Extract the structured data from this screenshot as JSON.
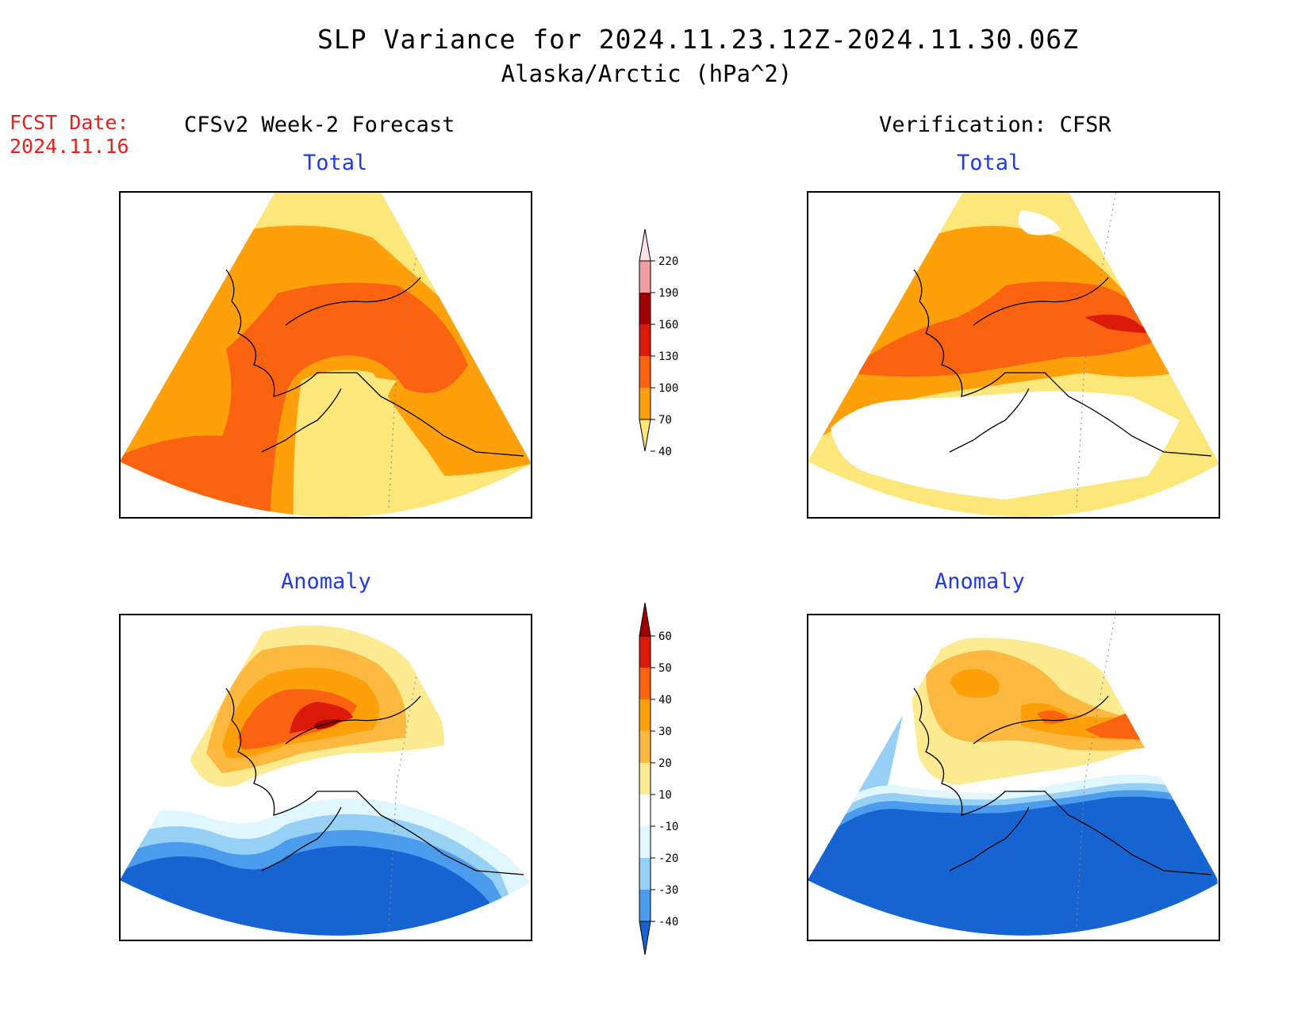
{
  "title_line1": "SLP Variance for 2024.11.23.12Z-2024.11.30.06Z",
  "title_line2": "Alaska/Arctic (hPa^2)",
  "fcst_label": "FCST Date:",
  "fcst_date": "2024.11.16",
  "left_header": "CFSv2 Week-2 Forecast",
  "right_header": "Verification: CFSR",
  "panels": [
    {
      "id": "forecast-total",
      "column": "forecast",
      "label": "Total"
    },
    {
      "id": "verification-total",
      "column": "verification",
      "label": "Total"
    },
    {
      "id": "forecast-anomaly",
      "column": "forecast",
      "label": "Anomaly"
    },
    {
      "id": "verification-anomaly",
      "column": "verification",
      "label": "Anomaly"
    }
  ],
  "total_colorbar": {
    "labels": [
      "220",
      "190",
      "160",
      "130",
      "100",
      "70",
      "40"
    ],
    "colors_top_to_bottom": [
      "#fde3e3",
      "#f0a0a0",
      "#a00000",
      "#dc1a0a",
      "#fb6310",
      "#fda00a",
      "#fde67a"
    ]
  },
  "anomaly_colorbar": {
    "labels": [
      "60",
      "50",
      "40",
      "30",
      "20",
      "10",
      "-10",
      "-20",
      "-30",
      "-40"
    ],
    "colors_top_to_bottom": [
      "#a00000",
      "#dc1a0a",
      "#fb6310",
      "#fda00a",
      "#fdb840",
      "#fdeb92",
      "#ffffff",
      "#e0f7ff",
      "#96d0f5",
      "#4b9ced",
      "#1664d2"
    ]
  },
  "colors": {
    "title_red": "#e8201c",
    "subtitle_blue": "#1f3be6"
  }
}
